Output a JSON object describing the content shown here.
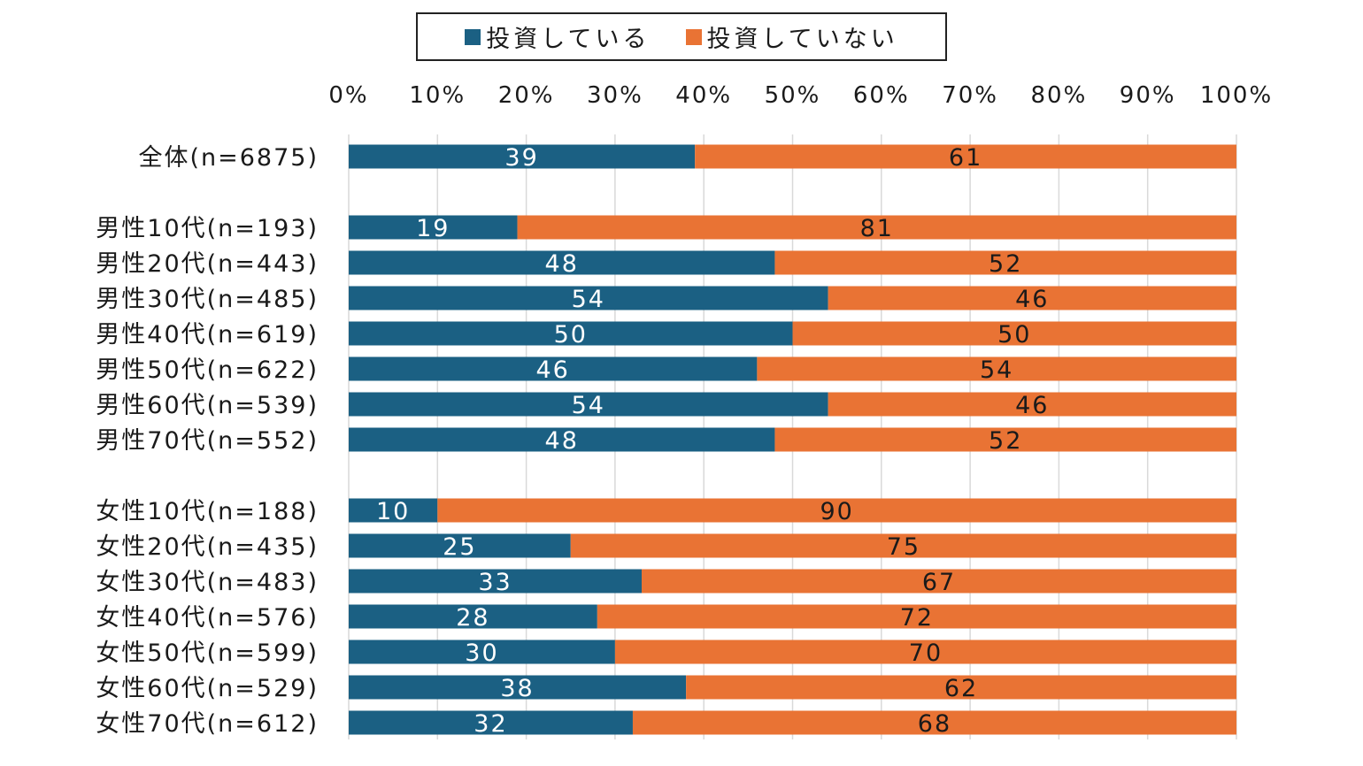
{
  "chart_data": {
    "type": "bar",
    "orientation": "horizontal",
    "stacked": "100%",
    "title": "",
    "xlabel": "",
    "ylabel": "",
    "xlim": [
      0,
      100
    ],
    "x_ticks": [
      "0%",
      "10%",
      "20%",
      "30%",
      "40%",
      "50%",
      "60%",
      "70%",
      "80%",
      "90%",
      "100%"
    ],
    "x_axis_position": "top",
    "grid": true,
    "legend": {
      "position": "top-center",
      "boxed": true
    },
    "categories": [
      "全体(n=6875)",
      "男性10代(n=193)",
      "男性20代(n=443)",
      "男性30代(n=485)",
      "男性40代(n=619)",
      "男性50代(n=622)",
      "男性60代(n=539)",
      "男性70代(n=552)",
      "女性10代(n=188)",
      "女性20代(n=435)",
      "女性30代(n=483)",
      "女性40代(n=576)",
      "女性50代(n=599)",
      "女性60代(n=529)",
      "女性70代(n=612)"
    ],
    "groups": [
      [
        0
      ],
      [
        1,
        2,
        3,
        4,
        5,
        6,
        7
      ],
      [
        8,
        9,
        10,
        11,
        12,
        13,
        14
      ]
    ],
    "series": [
      {
        "name": "投資している",
        "color": "#1b6083",
        "label_color": "#ffffff",
        "values": [
          39,
          19,
          48,
          54,
          50,
          46,
          54,
          48,
          10,
          25,
          33,
          28,
          30,
          38,
          32
        ]
      },
      {
        "name": "投資していない",
        "color": "#e97334",
        "label_color": "#1a1a1a",
        "values": [
          61,
          81,
          52,
          46,
          50,
          54,
          46,
          52,
          90,
          75,
          67,
          72,
          70,
          62,
          68
        ]
      }
    ]
  }
}
